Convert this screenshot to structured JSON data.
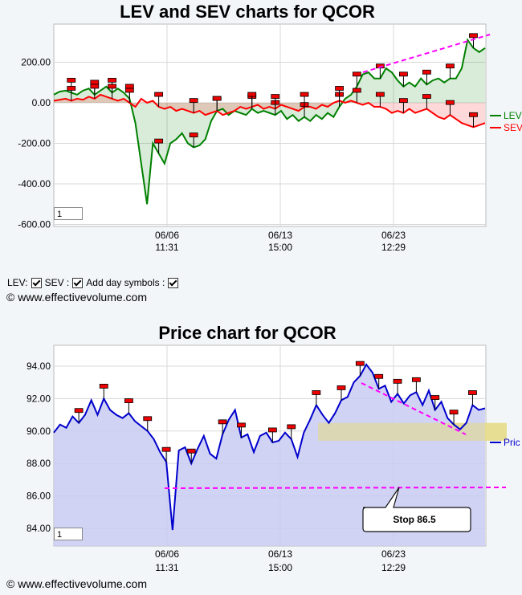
{
  "lev_chart": {
    "title": "LEV and SEV charts for QCOR",
    "zoom_value": "1",
    "controls": {
      "lev_label": "LEV:",
      "sev_label": "SEV :",
      "day_symbols_label": "Add day symbols :"
    },
    "copyright": "© www.effectivevolume.com"
  },
  "price_chart": {
    "title": "Price chart for QCOR",
    "zoom_value": "1",
    "stop_label": "Stop 86.5",
    "copyright": "© www.effectivevolume.com"
  },
  "colors": {
    "lev": "#008000",
    "sev": "#ff0000",
    "price": "#0000cc",
    "price_fill": "#c9cbf2",
    "trend": "#ff00ff",
    "support_band": "#e6dc8c"
  },
  "chart_data": [
    {
      "type": "line",
      "title": "LEV and SEV charts for QCOR",
      "x_ticks": [
        {
          "date": "06/06",
          "time": "11:31"
        },
        {
          "date": "06/13",
          "time": "15:00"
        },
        {
          "date": "06/23",
          "time": "12:29"
        }
      ],
      "y_ticks": [
        "200.00",
        "0.00",
        "-200.00",
        "-400.00",
        "-600.00"
      ],
      "ylim": [
        -600,
        350
      ],
      "grid": true,
      "legend_placement": "right",
      "series": [
        {
          "name": "LEV",
          "color": "#008000",
          "values": [
            40,
            55,
            60,
            50,
            40,
            60,
            70,
            40,
            60,
            80,
            50,
            70,
            50,
            20,
            -100,
            -300,
            -500,
            -200,
            -250,
            -300,
            -200,
            -180,
            -150,
            -200,
            -220,
            -210,
            -180,
            -90,
            -40,
            -30,
            -60,
            -40,
            -50,
            -60,
            -30,
            -50,
            -40,
            -50,
            -60,
            -40,
            -80,
            -60,
            -90,
            -70,
            -90,
            -60,
            -80,
            -50,
            -70,
            -20,
            20,
            40,
            80,
            140,
            150,
            120,
            120,
            170,
            150,
            110,
            80,
            100,
            80,
            120,
            90,
            110,
            120,
            100,
            120,
            120,
            170,
            310,
            270,
            250,
            270
          ]
        },
        {
          "name": "SEV",
          "color": "#ff0000",
          "values": [
            10,
            15,
            20,
            10,
            20,
            15,
            30,
            20,
            40,
            30,
            20,
            10,
            20,
            0,
            -20,
            20,
            0,
            10,
            -20,
            -30,
            -20,
            -40,
            -30,
            -40,
            -50,
            -40,
            -60,
            -50,
            -40,
            -60,
            -50,
            -40,
            -20,
            -30,
            -20,
            -10,
            -30,
            -20,
            -30,
            -10,
            -20,
            -30,
            -40,
            -20,
            -20,
            -30,
            -10,
            -20,
            0,
            10,
            0,
            10,
            0,
            -10,
            0,
            -20,
            -20,
            -30,
            -50,
            -40,
            -50,
            -30,
            -50,
            -40,
            -30,
            -50,
            -70,
            -80,
            -60,
            -80,
            -100,
            -110,
            -120,
            -110,
            -100
          ]
        }
      ]
    },
    {
      "type": "area",
      "title": "Price chart for QCOR",
      "x_ticks": [
        {
          "date": "06/06",
          "time": "11:31"
        },
        {
          "date": "06/13",
          "time": "15:00"
        },
        {
          "date": "06/23",
          "time": "12:29"
        }
      ],
      "y_ticks": [
        "94.00",
        "92.00",
        "90.00",
        "88.00",
        "86.00",
        "84.00"
      ],
      "ylim": [
        83,
        95.4
      ],
      "grid": true,
      "legend_placement": "right",
      "series": [
        {
          "name": "Pric",
          "color": "#0000cc",
          "values": [
            89.9,
            90.4,
            90.2,
            90.9,
            90.5,
            91.0,
            91.9,
            91.0,
            92.0,
            91.3,
            91.0,
            90.8,
            91.1,
            90.6,
            90.3,
            90.0,
            89.5,
            88.7,
            88.1,
            83.9,
            88.8,
            89.0,
            88.0,
            88.9,
            89.7,
            88.6,
            88.3,
            89.8,
            90.7,
            91.3,
            89.6,
            89.8,
            88.7,
            89.7,
            89.9,
            89.3,
            89.4,
            89.9,
            89.5,
            88.4,
            89.9,
            90.7,
            91.6,
            91.0,
            90.5,
            91.1,
            91.9,
            92.1,
            93.0,
            93.4,
            94.1,
            93.6,
            92.6,
            92.8,
            91.8,
            92.3,
            91.7,
            92.2,
            92.4,
            91.6,
            92.5,
            91.3,
            91.8,
            90.8,
            90.4,
            90.1,
            90.5,
            91.6,
            91.3,
            91.4
          ]
        }
      ],
      "annotations": {
        "stop_line": 86.5,
        "support_band": [
          89.4,
          90.5
        ],
        "stop_text": "Stop 86.5"
      }
    }
  ]
}
